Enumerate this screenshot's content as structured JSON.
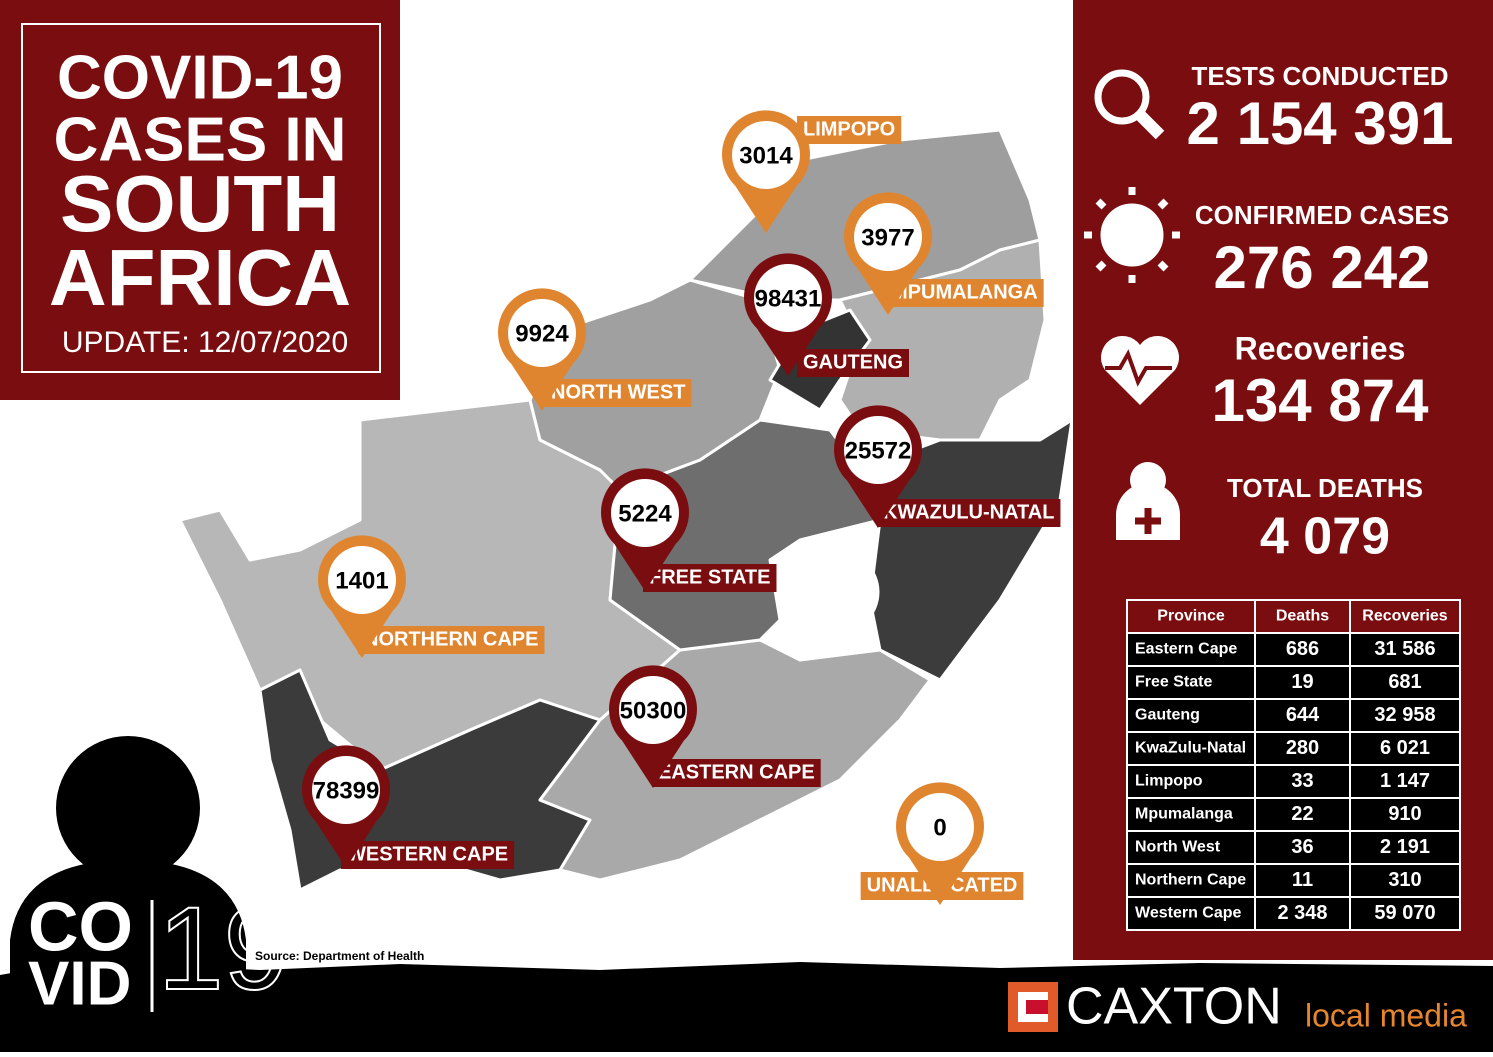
{
  "header": {
    "title_lines": [
      "COVID-19",
      "CASES IN",
      "SOUTH",
      "AFRICA"
    ],
    "update": "UPDATE: 12/07/2020"
  },
  "stats": [
    {
      "label": "TESTS CONDUCTED",
      "value": "2 154 391"
    },
    {
      "label": "CONFIRMED CASES",
      "value": "276 242"
    },
    {
      "label": "Recoveries",
      "value": "134 874"
    },
    {
      "label": "TOTAL DEATHS",
      "value": "4 079"
    }
  ],
  "map_pins": [
    {
      "label": "LIMPOPO",
      "value": 3014
    },
    {
      "label": "MPUMALANGA",
      "value": 3977
    },
    {
      "label": "GAUTENG",
      "value": 98431
    },
    {
      "label": "NORTH WEST",
      "value": 9924
    },
    {
      "label": "KWAZULU-NATAL",
      "value": 25572
    },
    {
      "label": "FREE STATE",
      "value": 5224
    },
    {
      "label": "NORTHERN CAPE",
      "value": 1401
    },
    {
      "label": "EASTERN CAPE",
      "value": 50300
    },
    {
      "label": "WESTERN CAPE",
      "value": 78399
    },
    {
      "label": "UNALLOCATED",
      "value": 0
    }
  ],
  "table": {
    "header": [
      "Province",
      "Deaths",
      "Recoveries"
    ],
    "rows": [
      [
        "Eastern Cape",
        "686",
        "31 586"
      ],
      [
        "Free State",
        "19",
        "681"
      ],
      [
        "Gauteng",
        "644",
        "32 958"
      ],
      [
        "KwaZulu-Natal",
        "280",
        "6 021"
      ],
      [
        "Limpopo",
        "33",
        "1 147"
      ],
      [
        "Mpumalanga",
        "22",
        "910"
      ],
      [
        "North West",
        "36",
        "2 191"
      ],
      [
        "Northern Cape",
        "11",
        "310"
      ],
      [
        "Western Cape",
        "2 348",
        "59 070"
      ]
    ]
  },
  "source": "Source: Department of Health",
  "covid_logo": {
    "line1": "CO",
    "line2": "VID",
    "number": "19"
  },
  "brand": {
    "name": "CAXTON",
    "tagline": "local media"
  }
}
